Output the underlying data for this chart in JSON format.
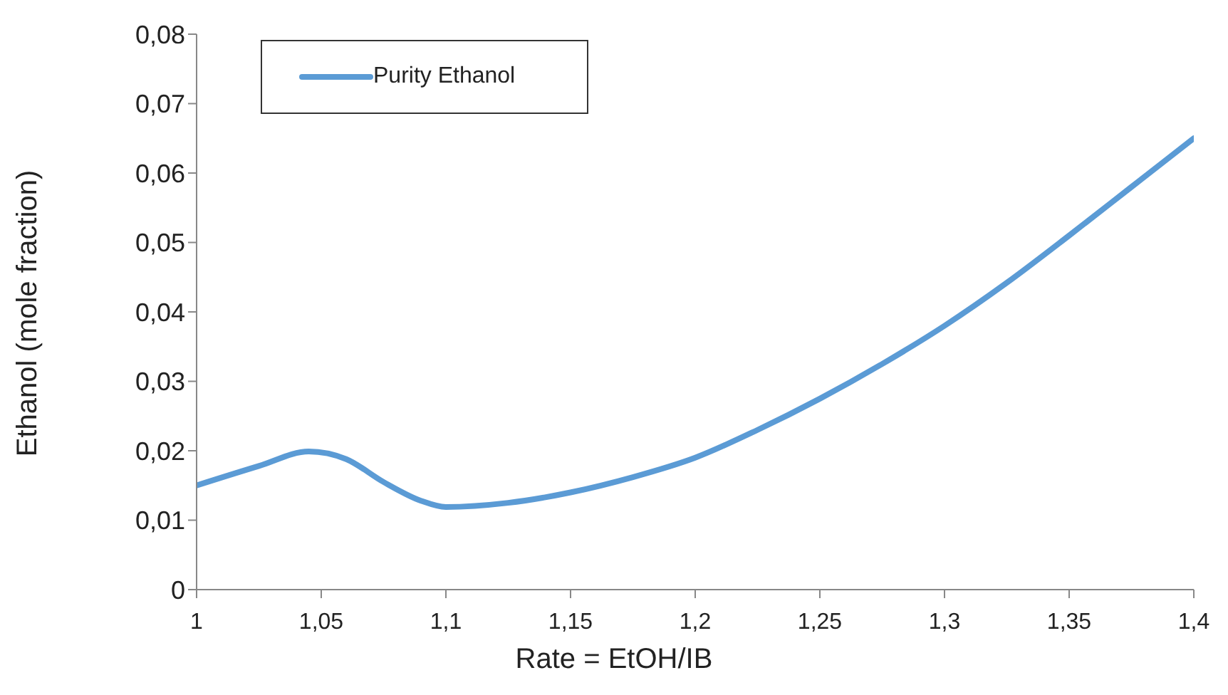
{
  "chart_data": {
    "type": "line",
    "xlabel": "Rate = EtOH/IB",
    "ylabel": "Ethanol (mole fraction)",
    "x": [
      1,
      1.025,
      1.045,
      1.06,
      1.075,
      1.09,
      1.1,
      1.125,
      1.15,
      1.175,
      1.2,
      1.225,
      1.25,
      1.275,
      1.3,
      1.325,
      1.35,
      1.375,
      1.4
    ],
    "series": [
      {
        "name": "Purity Ethanol",
        "color": "#5b9bd5",
        "values": [
          0.015,
          0.0178,
          0.0199,
          0.0188,
          0.0155,
          0.0128,
          0.0119,
          0.0125,
          0.014,
          0.0162,
          0.019,
          0.023,
          0.0275,
          0.0325,
          0.038,
          0.0442,
          0.051,
          0.058,
          0.065
        ]
      }
    ],
    "xlim": [
      1,
      1.4
    ],
    "xticks": [
      {
        "value": 1,
        "label": "1"
      },
      {
        "value": 1.05,
        "label": "1,05"
      },
      {
        "value": 1.1,
        "label": "1,1"
      },
      {
        "value": 1.15,
        "label": "1,15"
      },
      {
        "value": 1.2,
        "label": "1,2"
      },
      {
        "value": 1.25,
        "label": "1,25"
      },
      {
        "value": 1.3,
        "label": "1,3"
      },
      {
        "value": 1.35,
        "label": "1,35"
      },
      {
        "value": 1.4,
        "label": "1,4"
      }
    ],
    "ylim": [
      0,
      0.08
    ],
    "yticks": [
      {
        "value": 0,
        "label": "0"
      },
      {
        "value": 0.01,
        "label": "0,01"
      },
      {
        "value": 0.02,
        "label": "0,02"
      },
      {
        "value": 0.03,
        "label": "0,03"
      },
      {
        "value": 0.04,
        "label": "0,04"
      },
      {
        "value": 0.05,
        "label": "0,05"
      },
      {
        "value": 0.06,
        "label": "0,06"
      },
      {
        "value": 0.07,
        "label": "0,07"
      },
      {
        "value": 0.08,
        "label": "0,08"
      }
    ],
    "grid": false,
    "legend": "top left",
    "marker": "none",
    "line_style": "solid"
  }
}
